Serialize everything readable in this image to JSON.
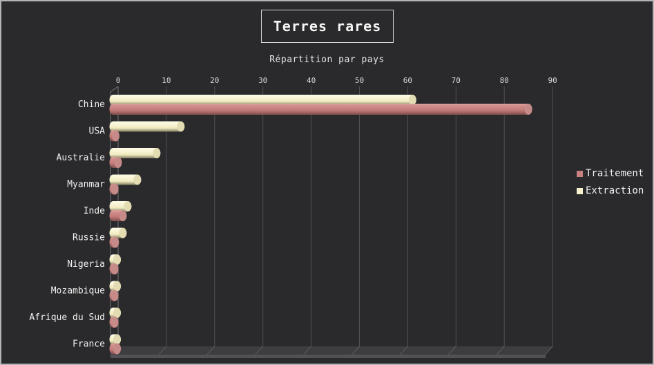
{
  "header": {
    "title": "Terres rares",
    "subtitle": "Répartition par pays"
  },
  "chart_data": {
    "type": "bar",
    "orientation": "horizontal",
    "style_3d": "cylinder",
    "title": "Terres rares",
    "subtitle": "Répartition par pays",
    "categories": [
      "Chine",
      "USA",
      "Australie",
      "Myanmar",
      "Inde",
      "Russie",
      "Nigeria",
      "Mozambique",
      "Afrique du Sud",
      "France"
    ],
    "series": [
      {
        "name": "Traitement",
        "color": "#c98180",
        "cap_color": "#c68b89",
        "gradient": [
          {
            "offset": "0%",
            "color": "#dca09b"
          },
          {
            "offset": "30%",
            "color": "#cd8886"
          },
          {
            "offset": "60%",
            "color": "#c27a78"
          },
          {
            "offset": "100%",
            "color": "#7e4e4c"
          }
        ],
        "values": [
          86,
          0.5,
          1,
          0.3,
          2,
          0.4,
          0.3,
          0.3,
          0.3,
          0.8
        ]
      },
      {
        "name": "Extraction",
        "color": "#f7f2cd",
        "cap_color": "#e3dcb2",
        "gradient": [
          {
            "offset": "0%",
            "color": "#fefce9"
          },
          {
            "offset": "30%",
            "color": "#f9f5d6"
          },
          {
            "offset": "65%",
            "color": "#f0eabf"
          },
          {
            "offset": "100%",
            "color": "#847e62"
          }
        ],
        "values": [
          62,
          14,
          9,
          5,
          3,
          2,
          0.8,
          0.8,
          0.8,
          0.8
        ]
      }
    ],
    "x_axis": {
      "min": 0,
      "max": 90,
      "tick_interval": 10,
      "ticks": [
        0,
        10,
        20,
        30,
        40,
        50,
        60,
        70,
        80,
        90
      ]
    },
    "legend": {
      "position": "right",
      "entries": [
        "Traitement",
        "Extraction"
      ]
    },
    "grid": true,
    "background_color": "#2a2a2c",
    "frame_border_color": "#b4b4b8",
    "text_color": "#d9d9d9",
    "category_label_color": "#f0f0f0",
    "gridline_color": "#515156",
    "axis_line_color": "#77777c",
    "floor_colors": {
      "top": "#3d3d3f",
      "front": "#515155",
      "tick": "#5c5c60"
    }
  }
}
